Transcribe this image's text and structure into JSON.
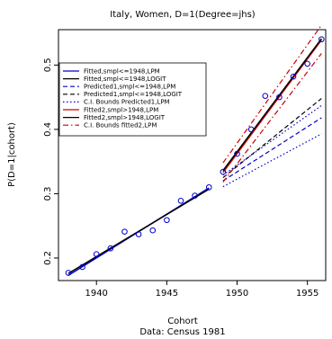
{
  "chart_data": {
    "type": "line",
    "title": "Italy, Women, D=1(Degree=jhs)",
    "xlabel": "Cohort",
    "subtitle": "Data: Census 1981",
    "ylabel": "P(D=1|cohort)",
    "xlim": [
      1937.3,
      1956.3
    ],
    "ylim": [
      0.165,
      0.555
    ],
    "xticks": [
      1940,
      1945,
      1950,
      1955
    ],
    "yticks": [
      0.2,
      0.3,
      0.4,
      0.5
    ],
    "points": {
      "x": [
        1938,
        1939,
        1940,
        1941,
        1942,
        1943,
        1944,
        1945,
        1946,
        1947,
        1948,
        1949,
        1950,
        1951,
        1952,
        1953,
        1954,
        1955,
        1956
      ],
      "y": [
        0.177,
        0.186,
        0.206,
        0.215,
        0.241,
        0.237,
        0.243,
        0.259,
        0.289,
        0.297,
        0.31,
        0.334,
        0.362,
        0.4,
        0.452,
        0.45,
        0.482,
        0.502,
        0.54
      ]
    },
    "series": [
      {
        "name": "Fitted,smpl<=1948,LPM",
        "color": "#0000cc",
        "dash": "solid",
        "x": [
          1938,
          1948
        ],
        "y": [
          0.173,
          0.309
        ]
      },
      {
        "name": "Fitted,smpl<=1948,LOGIT",
        "color": "#000000",
        "dash": "solid",
        "x": [
          1938,
          1948
        ],
        "y": [
          0.176,
          0.307
        ]
      },
      {
        "name": "Predicted1,smpl<=1948,LPM",
        "color": "#0000cc",
        "dash": "dash",
        "x": [
          1949,
          1956
        ],
        "y": [
          0.32,
          0.418
        ]
      },
      {
        "name": "Predicted1,smpl<=1948,LOGIT",
        "color": "#000000",
        "dash": "dash",
        "x": [
          1949,
          1956
        ],
        "y": [
          0.325,
          0.448
        ]
      },
      {
        "name": "C.I. Bounds Predicted1,LPM",
        "color": "#0000cc",
        "dash": "dot",
        "x": [
          1949,
          1956
        ],
        "y": [
          0.311,
          0.393
        ]
      },
      {
        "name": "C.I. Bounds Predicted1,LPM",
        "color": "#0000cc",
        "dash": "dot",
        "x": [
          1949,
          1956
        ],
        "y": [
          0.329,
          0.437
        ],
        "legend": false
      },
      {
        "name": "Fitted2,smpl>1948,LPM",
        "color": "#cc0000",
        "dash": "solid",
        "x": [
          1949,
          1956
        ],
        "y": [
          0.333,
          0.539
        ]
      },
      {
        "name": "Fitted2,smpl>1948,LOGIT",
        "color": "#000000",
        "dash": "solid",
        "x": [
          1949,
          1956
        ],
        "y": [
          0.336,
          0.541
        ]
      },
      {
        "name": "C.I. Bounds fitted2,LPM",
        "color": "#cc0000",
        "dash": "dashdot",
        "x": [
          1949,
          1956
        ],
        "y": [
          0.348,
          0.562
        ]
      },
      {
        "name": "C.I. Bounds fitted2,LPM",
        "color": "#cc0000",
        "dash": "dashdot",
        "x": [
          1949,
          1956
        ],
        "y": [
          0.318,
          0.518
        ],
        "legend": false
      }
    ],
    "legend_position": "top-left"
  }
}
